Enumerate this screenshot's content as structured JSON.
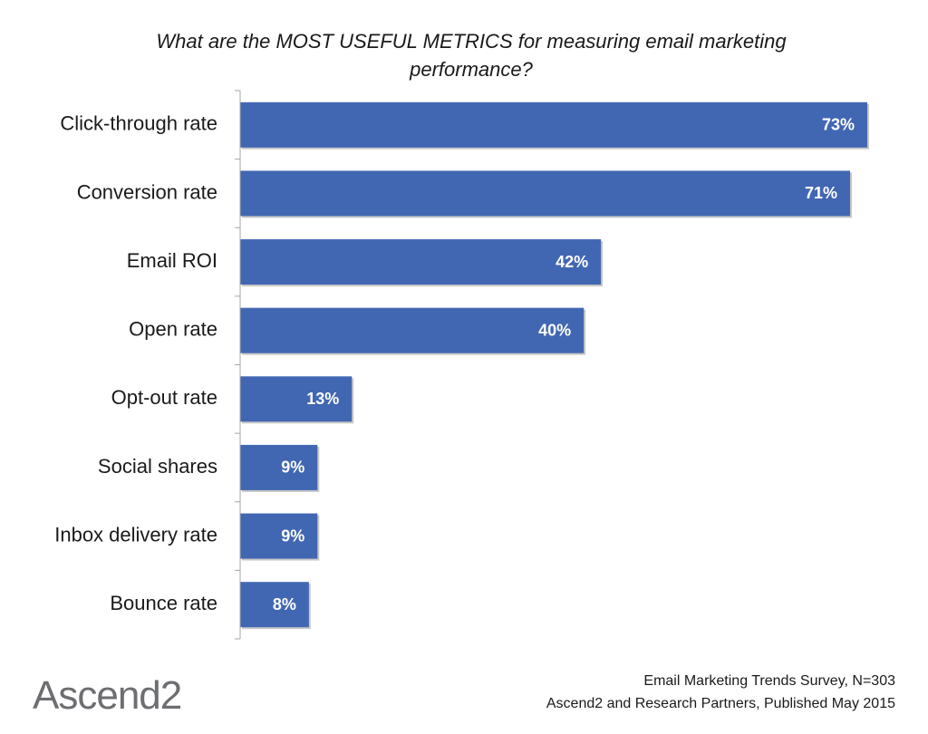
{
  "chart_data": {
    "type": "bar",
    "orientation": "horizontal",
    "title": "What are the MOST USEFUL METRICS for measuring email marketing performance?",
    "categories": [
      "Click-through rate",
      "Conversion rate",
      "Email ROI",
      "Open rate",
      "Opt-out rate",
      "Social shares",
      "Inbox delivery rate",
      "Bounce rate"
    ],
    "values": [
      73,
      71,
      42,
      40,
      13,
      9,
      9,
      8
    ],
    "value_labels": [
      "73%",
      "71%",
      "42%",
      "40%",
      "13%",
      "9%",
      "9%",
      "8%"
    ],
    "color": "#4267b2"
  },
  "footer": {
    "logo": "Ascend2",
    "source": [
      "Email Marketing Trends Survey, N=303",
      "Ascend2 and Research Partners, Published May 2015"
    ]
  }
}
